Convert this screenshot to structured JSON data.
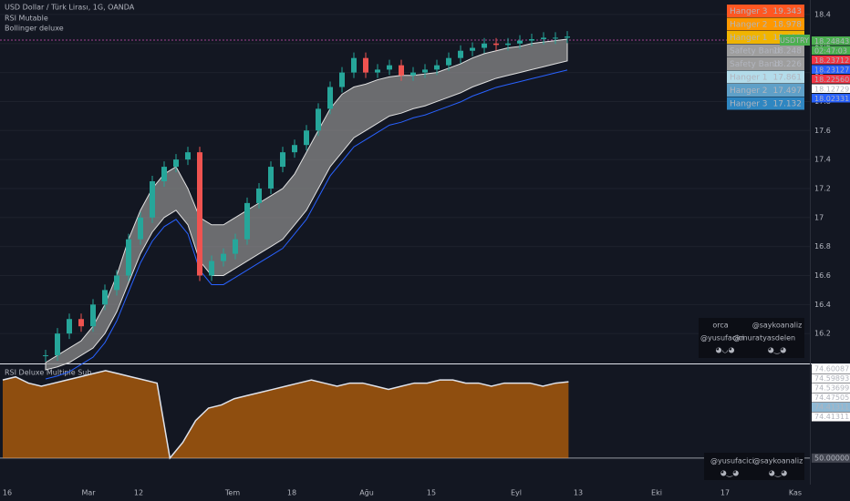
{
  "header": {
    "symbol": "USD Dollar / Türk Lirası, 1G, OANDA",
    "indicator_1": "RSI Mutable",
    "indicator_2": "Bollinger deluxe"
  },
  "price_pane": {
    "ylim": [
      16.0,
      18.5
    ],
    "yticks": [
      16.2,
      16.4,
      16.6,
      16.8,
      17.0,
      17.2,
      17.4,
      17.6,
      17.8,
      18.0,
      18.2,
      18.4
    ],
    "close": [
      16.05,
      16.2,
      16.3,
      16.25,
      16.4,
      16.5,
      16.6,
      16.85,
      17.0,
      17.25,
      17.35,
      17.4,
      17.45,
      16.6,
      16.7,
      16.75,
      16.85,
      17.1,
      17.2,
      17.35,
      17.45,
      17.5,
      17.6,
      17.75,
      17.9,
      18.0,
      18.1,
      18.0,
      18.02,
      18.05,
      17.98,
      18.0,
      18.02,
      18.05,
      18.1,
      18.15,
      18.17,
      18.2,
      18.19,
      18.2,
      18.22,
      18.23,
      18.24,
      18.24,
      18.248
    ],
    "upper": [
      16.0,
      16.05,
      16.1,
      16.15,
      16.25,
      16.4,
      16.6,
      16.85,
      17.05,
      17.2,
      17.3,
      17.35,
      17.2,
      17.0,
      16.95,
      16.95,
      17.0,
      17.05,
      17.1,
      17.15,
      17.2,
      17.3,
      17.45,
      17.6,
      17.75,
      17.85,
      17.9,
      17.92,
      17.95,
      17.97,
      17.98,
      17.98,
      17.99,
      18.0,
      18.03,
      18.06,
      18.1,
      18.13,
      18.15,
      18.17,
      18.18,
      18.2,
      18.21,
      18.22,
      18.23
    ],
    "lower": [
      15.95,
      15.97,
      16.0,
      16.05,
      16.1,
      16.2,
      16.35,
      16.55,
      16.75,
      16.9,
      17.0,
      17.05,
      16.95,
      16.7,
      16.6,
      16.6,
      16.65,
      16.7,
      16.75,
      16.8,
      16.85,
      16.95,
      17.05,
      17.2,
      17.35,
      17.45,
      17.55,
      17.6,
      17.65,
      17.7,
      17.72,
      17.75,
      17.77,
      17.8,
      17.83,
      17.86,
      17.9,
      17.93,
      17.96,
      17.98,
      18.0,
      18.02,
      18.04,
      18.06,
      18.08
    ],
    "symbol_tag": "USDTRY",
    "price_labels": [
      {
        "text": "18.24843",
        "bg": "#4caf50",
        "fg": "#ffffff"
      },
      {
        "text": "02:47:03",
        "bg": "#4caf50",
        "fg": "#ffffff"
      },
      {
        "text": "18.23712",
        "bg": "#f23645",
        "fg": "#ffffff"
      },
      {
        "text": "18.23127",
        "bg": "#2962ff",
        "fg": "#ffffff"
      },
      {
        "text": "18.22560",
        "bg": "#f23645",
        "fg": "#ffffff"
      },
      {
        "text": "18.12729",
        "bg": "#ffffff",
        "fg": "#131722"
      },
      {
        "text": "18.02331",
        "bg": "#2962ff",
        "fg": "#ffffff"
      }
    ]
  },
  "hanger_table": [
    {
      "name": "Hanger 3",
      "value": "19.343",
      "bg": "#ff5722"
    },
    {
      "name": "Hanger 2",
      "value": "18.978",
      "bg": "#ff9800"
    },
    {
      "name": "Hanger 1",
      "value": "18.613",
      "bg": "#f0b400"
    },
    {
      "name": "Safety Band",
      "value": "18.248",
      "bg": "#9e9e9e"
    },
    {
      "name": "Safety Band",
      "value": "18.226",
      "bg": "#9e9e9e"
    },
    {
      "name": "Hanger 1",
      "value": "17.861",
      "bg": "#b3dcea"
    },
    {
      "name": "Hanger 2",
      "value": "17.497",
      "bg": "#5fa0c8"
    },
    {
      "name": "Hanger 3",
      "value": "17.132",
      "bg": "#2e86c1"
    }
  ],
  "signature_1": {
    "names": [
      "orca",
      "@saykoanaliz",
      "@yusufacici",
      "@muratyasdelen"
    ],
    "faces": [
      "◕◡◕",
      "◕‿◕"
    ]
  },
  "rsi_pane": {
    "title": "RSI Deluxe Multiple Sub",
    "ylim": [
      45,
      80
    ],
    "baseline": 50,
    "rsi": [
      75,
      76,
      74,
      73,
      74,
      75,
      76,
      77,
      78,
      77,
      76,
      75,
      74,
      50,
      55,
      62,
      66,
      67,
      69,
      70,
      71,
      72,
      73,
      74,
      75,
      74,
      73,
      74,
      74,
      73,
      72,
      73,
      74,
      74,
      75,
      75,
      74,
      74,
      73,
      74,
      74,
      74,
      73,
      74,
      74.41311
    ],
    "labels": [
      {
        "text": "74.60087",
        "bg": "#ffffff",
        "fg": "#131722"
      },
      {
        "text": "74.59893",
        "bg": "#ffffff",
        "fg": "#131722"
      },
      {
        "text": "74.53699",
        "bg": "#ffffff",
        "fg": "#131722"
      },
      {
        "text": "74.47505",
        "bg": "#ffffff",
        "fg": "#131722"
      },
      {
        "text": "74.41311",
        "bg": "#8fb9d4",
        "fg": "#131722"
      },
      {
        "text": "74.41311",
        "bg": "#ffffff",
        "fg": "#131722"
      },
      {
        "text": "50.00000",
        "bg": "#434651",
        "fg": "#ffffff"
      }
    ]
  },
  "signature_2": {
    "names": [
      "@yusufacici",
      "@saykoanaliz"
    ],
    "faces": [
      "◕‿◕",
      "◕‿◕"
    ]
  },
  "time_axis": [
    "16",
    "Mar",
    "12",
    "Tem",
    "18",
    "Ağu",
    "15",
    "Eyl",
    "13",
    "Eki",
    "17",
    "Kas"
  ]
}
